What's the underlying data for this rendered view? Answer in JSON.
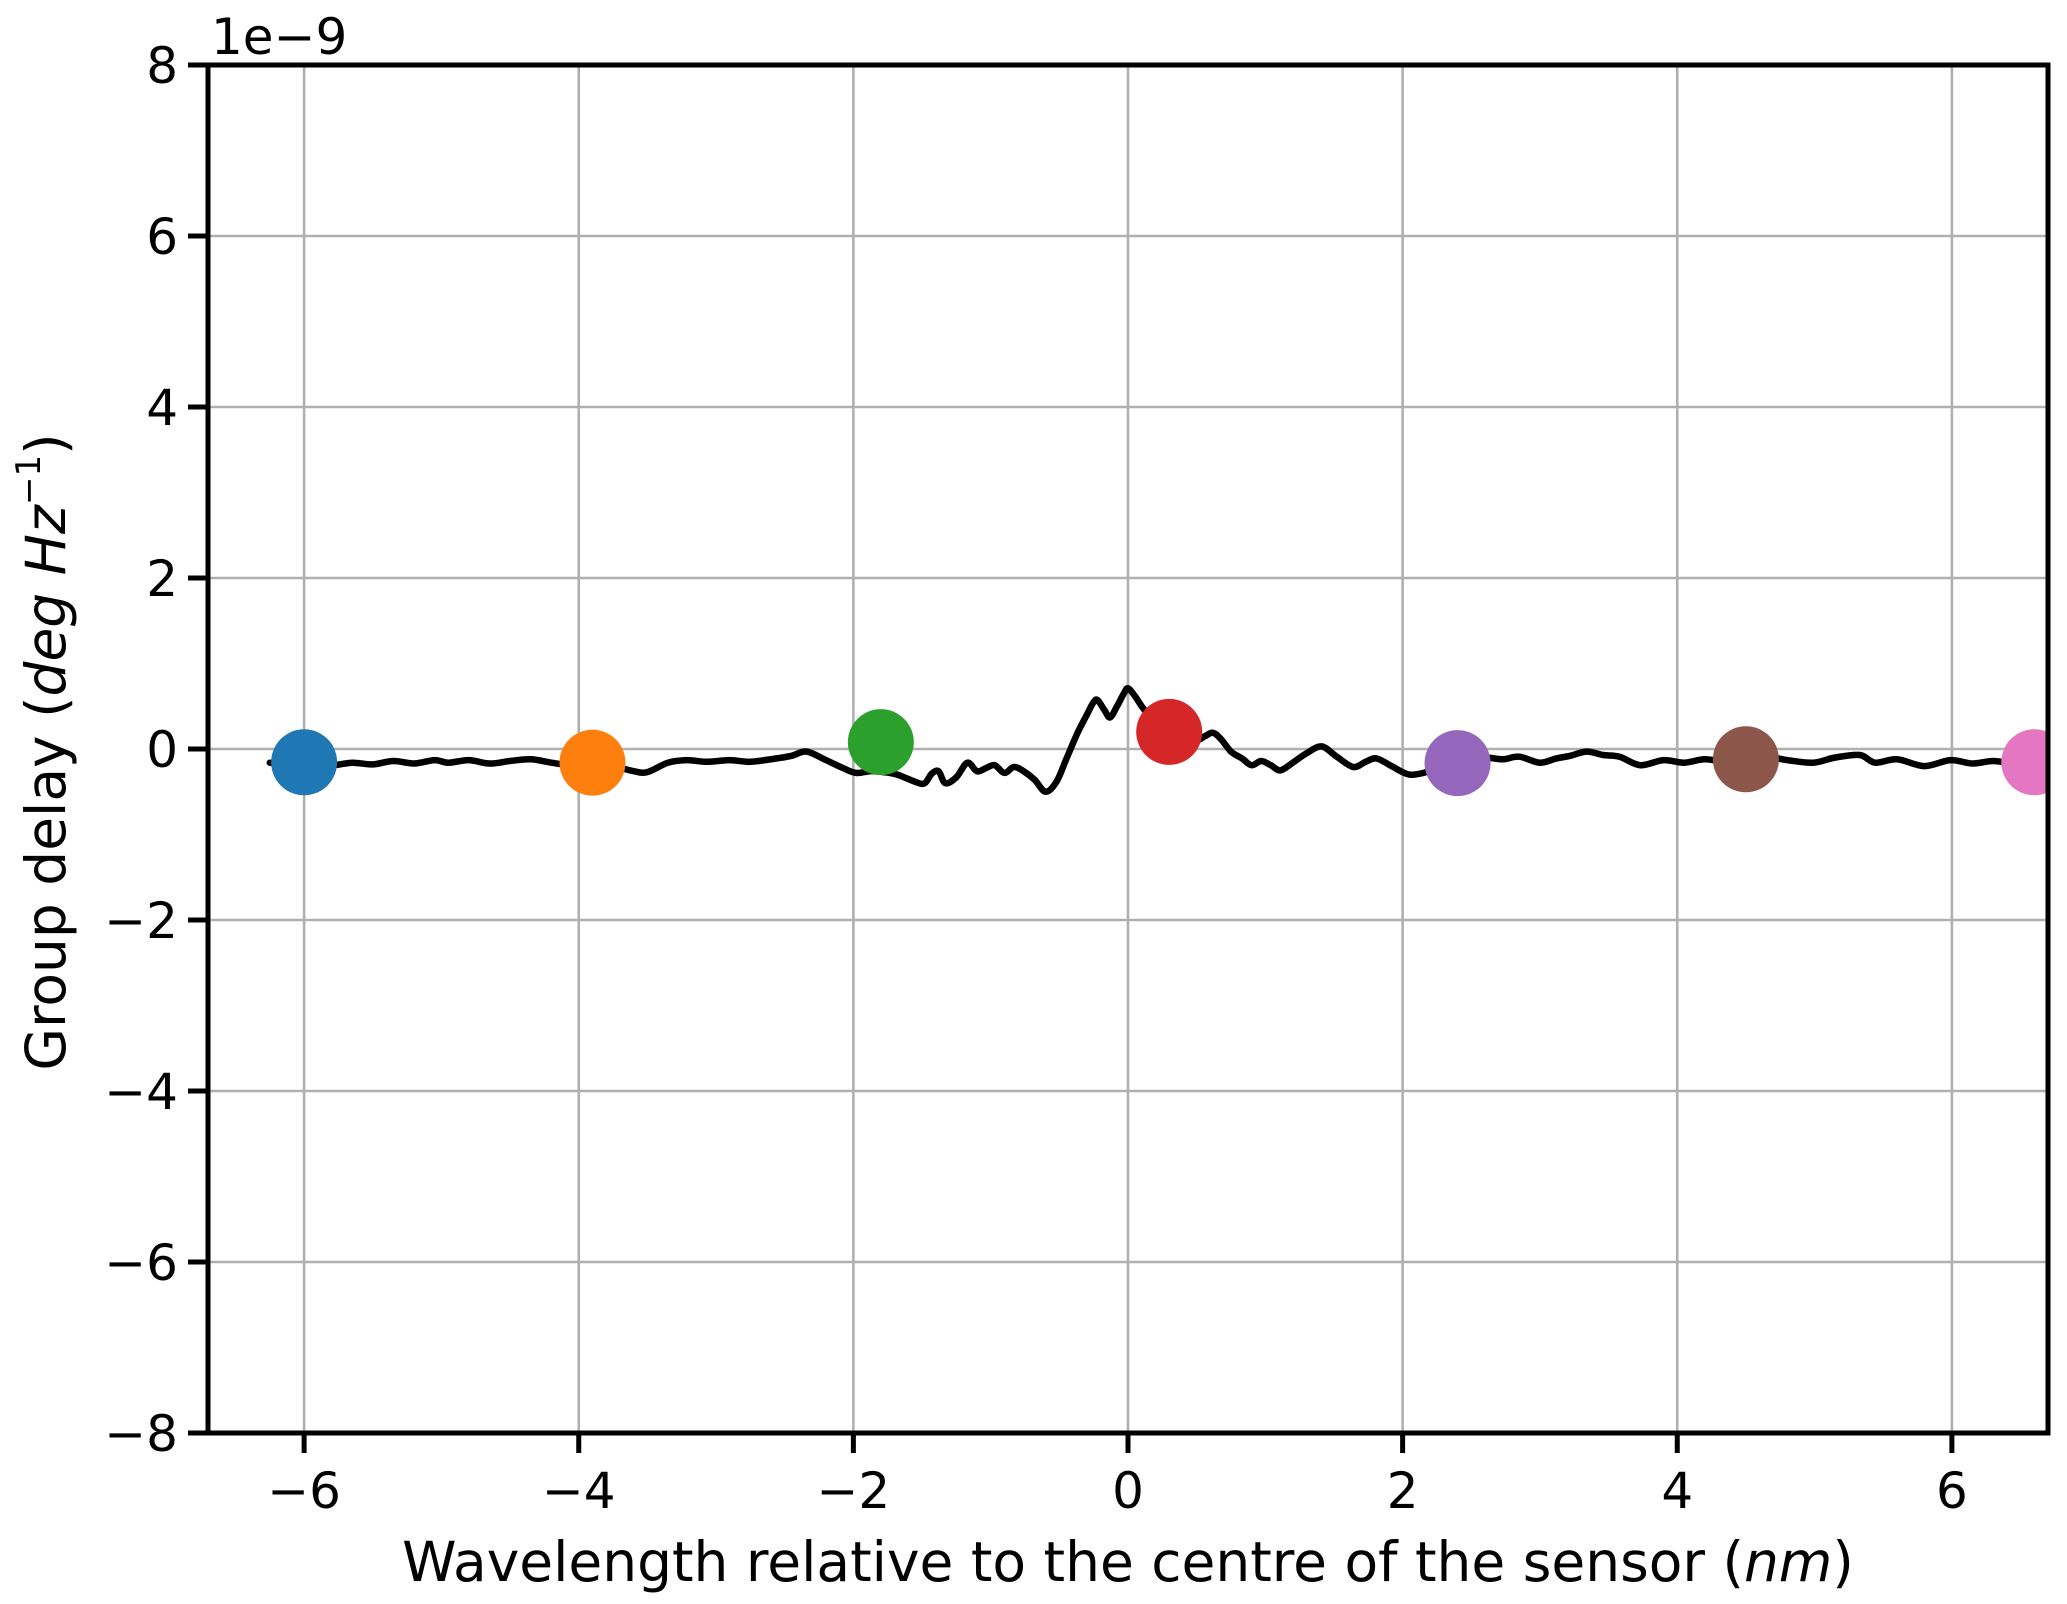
{
  "offset_text": "1e−9",
  "xlabel": {
    "prefix": "Wavelength relative to the centre of the sensor (",
    "italic": "nm",
    "suffix": ")"
  },
  "ylabel": {
    "prefix": "Group delay (",
    "italic": "deg Hz",
    "sup": "−1",
    "suffix": ")"
  },
  "style": {
    "background": "#ffffff",
    "grid_color": "#b0b0b0",
    "spine_color": "#000000",
    "curve_color": "#000000",
    "text_color": "#000000"
  },
  "chart_data": {
    "type": "line",
    "title": "",
    "xlabel": "Wavelength relative to the centre of the sensor (nm)",
    "ylabel": "Group delay (deg Hz⁻¹)",
    "y_offset_multiplier": "1e−9",
    "xlim": [
      -6.7,
      6.7
    ],
    "ylim_1e9": [
      -8,
      8
    ],
    "grid": true,
    "legend": "none",
    "x_tick_values": [
      -6,
      -4,
      -2,
      0,
      2,
      4,
      6
    ],
    "x_tick_labels": [
      "−6",
      "−4",
      "−2",
      "0",
      "2",
      "4",
      "6"
    ],
    "y_tick_values": [
      8,
      6,
      4,
      2,
      0,
      -2,
      -4,
      -6,
      -8
    ],
    "y_tick_labels": [
      "8",
      "6",
      "4",
      "2",
      "0",
      "−2",
      "−4",
      "−6",
      "−8"
    ],
    "series": [
      {
        "name": "group-delay-curve",
        "kind": "line",
        "color": "#000000",
        "points_x_nm_y_1e9": [
          [
            -6.25,
            -0.16
          ],
          [
            -6.1,
            -0.17
          ],
          [
            -5.95,
            -0.15
          ],
          [
            -5.8,
            -0.19
          ],
          [
            -5.65,
            -0.16
          ],
          [
            -5.5,
            -0.18
          ],
          [
            -5.35,
            -0.14
          ],
          [
            -5.2,
            -0.17
          ],
          [
            -5.05,
            -0.13
          ],
          [
            -4.95,
            -0.16
          ],
          [
            -4.8,
            -0.13
          ],
          [
            -4.65,
            -0.17
          ],
          [
            -4.5,
            -0.14
          ],
          [
            -4.35,
            -0.12
          ],
          [
            -4.2,
            -0.16
          ],
          [
            -4.05,
            -0.19
          ],
          [
            -3.9,
            -0.17
          ],
          [
            -3.75,
            -0.2
          ],
          [
            -3.6,
            -0.26
          ],
          [
            -3.5,
            -0.27
          ],
          [
            -3.35,
            -0.16
          ],
          [
            -3.21,
            -0.13
          ],
          [
            -3.07,
            -0.15
          ],
          [
            -2.9,
            -0.13
          ],
          [
            -2.75,
            -0.15
          ],
          [
            -2.56,
            -0.11
          ],
          [
            -2.45,
            -0.08
          ],
          [
            -2.34,
            -0.03
          ],
          [
            -2.2,
            -0.13
          ],
          [
            -2.08,
            -0.22
          ],
          [
            -1.98,
            -0.28
          ],
          [
            -1.88,
            -0.26
          ],
          [
            -1.78,
            -0.27
          ],
          [
            -1.68,
            -0.3
          ],
          [
            -1.54,
            -0.39
          ],
          [
            -1.48,
            -0.4
          ],
          [
            -1.43,
            -0.29
          ],
          [
            -1.38,
            -0.26
          ],
          [
            -1.33,
            -0.4
          ],
          [
            -1.25,
            -0.33
          ],
          [
            -1.17,
            -0.16
          ],
          [
            -1.1,
            -0.26
          ],
          [
            -1.03,
            -0.22
          ],
          [
            -0.97,
            -0.19
          ],
          [
            -0.9,
            -0.28
          ],
          [
            -0.83,
            -0.21
          ],
          [
            -0.76,
            -0.26
          ],
          [
            -0.68,
            -0.36
          ],
          [
            -0.6,
            -0.5
          ],
          [
            -0.52,
            -0.38
          ],
          [
            -0.45,
            -0.12
          ],
          [
            -0.37,
            0.18
          ],
          [
            -0.3,
            0.4
          ],
          [
            -0.25,
            0.55
          ],
          [
            -0.22,
            0.57
          ],
          [
            -0.17,
            0.45
          ],
          [
            -0.13,
            0.37
          ],
          [
            -0.08,
            0.5
          ],
          [
            -0.03,
            0.65
          ],
          [
            0.0,
            0.71
          ],
          [
            0.05,
            0.62
          ],
          [
            0.1,
            0.5
          ],
          [
            0.17,
            0.36
          ],
          [
            0.25,
            0.25
          ],
          [
            0.33,
            0.17
          ],
          [
            0.42,
            0.11
          ],
          [
            0.5,
            0.1
          ],
          [
            0.56,
            0.15
          ],
          [
            0.62,
            0.19
          ],
          [
            0.68,
            0.11
          ],
          [
            0.75,
            -0.03
          ],
          [
            0.83,
            -0.11
          ],
          [
            0.9,
            -0.19
          ],
          [
            0.97,
            -0.14
          ],
          [
            1.04,
            -0.19
          ],
          [
            1.11,
            -0.25
          ],
          [
            1.2,
            -0.16
          ],
          [
            1.3,
            -0.05
          ],
          [
            1.41,
            0.03
          ],
          [
            1.52,
            -0.09
          ],
          [
            1.64,
            -0.21
          ],
          [
            1.73,
            -0.15
          ],
          [
            1.81,
            -0.11
          ],
          [
            1.92,
            -0.2
          ],
          [
            2.05,
            -0.3
          ],
          [
            2.2,
            -0.26
          ],
          [
            2.32,
            -0.21
          ],
          [
            2.4,
            -0.18
          ],
          [
            2.5,
            -0.14
          ],
          [
            2.6,
            -0.1
          ],
          [
            2.73,
            -0.12
          ],
          [
            2.85,
            -0.09
          ],
          [
            3.0,
            -0.16
          ],
          [
            3.12,
            -0.11
          ],
          [
            3.22,
            -0.08
          ],
          [
            3.34,
            -0.03
          ],
          [
            3.46,
            -0.07
          ],
          [
            3.58,
            -0.09
          ],
          [
            3.73,
            -0.19
          ],
          [
            3.9,
            -0.13
          ],
          [
            4.05,
            -0.16
          ],
          [
            4.2,
            -0.12
          ],
          [
            4.35,
            -0.15
          ],
          [
            4.5,
            -0.12
          ],
          [
            4.65,
            -0.09
          ],
          [
            4.8,
            -0.13
          ],
          [
            4.99,
            -0.16
          ],
          [
            5.15,
            -0.1
          ],
          [
            5.33,
            -0.07
          ],
          [
            5.44,
            -0.16
          ],
          [
            5.6,
            -0.12
          ],
          [
            5.8,
            -0.2
          ],
          [
            5.99,
            -0.13
          ],
          [
            6.15,
            -0.17
          ],
          [
            6.3,
            -0.14
          ],
          [
            6.45,
            -0.17
          ],
          [
            6.6,
            -0.16
          ],
          [
            6.7,
            -0.15
          ]
        ]
      },
      {
        "name": "sensor-channel-markers",
        "kind": "scatter",
        "points": [
          {
            "name": "marker-blue",
            "x_nm": -6.0,
            "y_1e9": -0.155,
            "color": "#1f77b4"
          },
          {
            "name": "marker-orange",
            "x_nm": -3.9,
            "y_1e9": -0.16,
            "color": "#ff7f0e"
          },
          {
            "name": "marker-green",
            "x_nm": -1.8,
            "y_1e9": 0.08,
            "color": "#2ca02c"
          },
          {
            "name": "marker-red",
            "x_nm": 0.3,
            "y_1e9": 0.2,
            "color": "#d62728"
          },
          {
            "name": "marker-purple",
            "x_nm": 2.4,
            "y_1e9": -0.165,
            "color": "#9467bd"
          },
          {
            "name": "marker-brown",
            "x_nm": 4.5,
            "y_1e9": -0.12,
            "color": "#8c564b"
          },
          {
            "name": "marker-pink",
            "x_nm": 6.6,
            "y_1e9": -0.155,
            "color": "#e377c2"
          }
        ]
      }
    ]
  }
}
